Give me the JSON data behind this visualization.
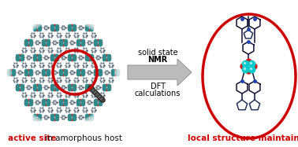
{
  "background_color": "#ffffff",
  "arrow_text_line1": "solid state",
  "arrow_text_line2": "NMR",
  "arrow_text_line3": "DFT",
  "arrow_text_line4": "calculations",
  "left_label_bold": "active site",
  "left_label_rest": " in amorphous host",
  "right_label": "local structure maintained",
  "label_color": "#cc0000",
  "label_rest_color": "#111111",
  "arrow_color": "#bbbbbb",
  "arrow_edge_color": "#999999",
  "circle_color": "#cc0000",
  "circle_lw": 2.2,
  "text_fontsize": 7.0,
  "label_fontsize": 7.5,
  "fig_width": 3.78,
  "fig_height": 1.87,
  "cluster_color": "#2e8b8b",
  "cluster_dark": "#1a5555",
  "bond_color": "#7799aa",
  "red_atom": "#cc3333",
  "white_bg": "#f0f0f0"
}
